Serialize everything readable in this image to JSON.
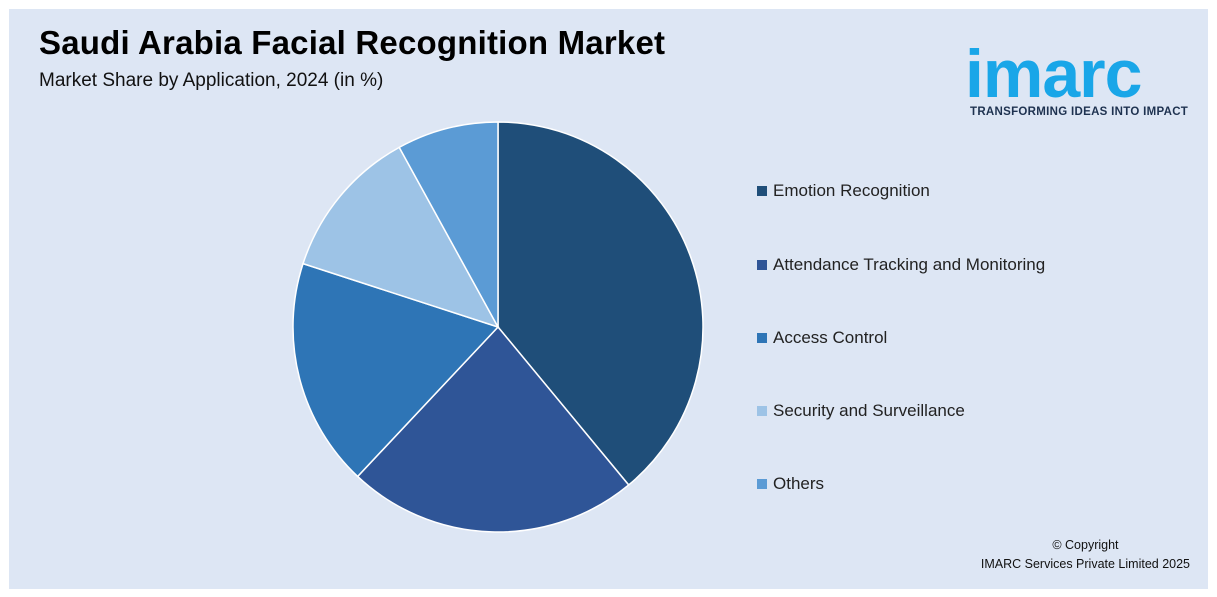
{
  "header": {
    "title": "Saudi Arabia Facial Recognition Market",
    "subtitle": "Market Share by Application, 2024 (in %)"
  },
  "logo": {
    "wordmark": "imarc",
    "tagline": "TRANSFORMING IDEAS INTO IMPACT",
    "color": "#19a6e8"
  },
  "footer": {
    "copyright_line1": "© Copyright",
    "copyright_line2": "IMARC Services Private Limited 2025"
  },
  "chart_data": {
    "type": "pie",
    "title": "Saudi Arabia Facial Recognition Market",
    "subtitle": "Market Share by Application, 2024 (in %)",
    "legend_position": "right",
    "categories": [
      "Emotion Recognition",
      "Attendance Tracking and Monitoring",
      "Access Control",
      "Security and Surveillance",
      "Others"
    ],
    "values": [
      39,
      23,
      18,
      12,
      8
    ],
    "colors": [
      "#1f4e79",
      "#2f5597",
      "#2e75b6",
      "#9dc3e6",
      "#5b9bd5"
    ]
  }
}
